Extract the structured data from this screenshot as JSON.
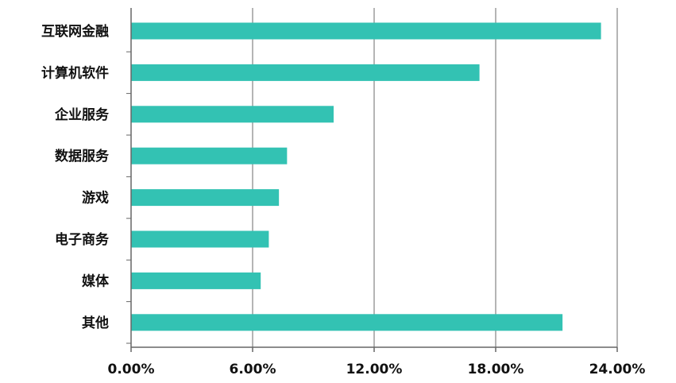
{
  "chart_data": {
    "type": "bar",
    "orientation": "horizontal",
    "categories": [
      "互联网金融",
      "计算机软件",
      "企业服务",
      "数据服务",
      "游戏",
      "电子商务",
      "媒体",
      "其他"
    ],
    "values": [
      23.2,
      17.2,
      10.0,
      7.7,
      7.3,
      6.8,
      6.4,
      21.3
    ],
    "value_unit": "%",
    "xlim": [
      0,
      24
    ],
    "xticks": [
      0,
      6,
      12,
      18,
      24
    ],
    "xtick_labels": [
      "0.00%",
      "6.00%",
      "12.00%",
      "18.00%",
      "24.00%"
    ],
    "grid": "vertical",
    "legend": "none",
    "bar_color": "#33c2b3",
    "title": "",
    "xlabel": "",
    "ylabel": ""
  }
}
